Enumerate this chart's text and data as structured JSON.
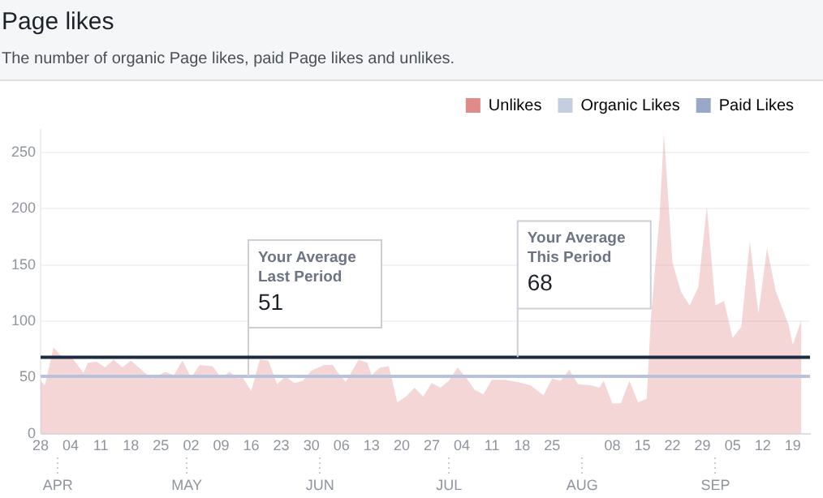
{
  "chart_data": {
    "type": "area",
    "title": "Page likes",
    "subtitle": "The number of organic Page likes, paid Page likes and unlikes.",
    "x": [
      "--03-28",
      "--03-29",
      "--03-31",
      "--04-02",
      "--04-04",
      "--04-07",
      "--04-08",
      "--04-10",
      "--04-12",
      "--04-14",
      "--04-16",
      "--04-18",
      "--04-21",
      "--04-23",
      "--04-26",
      "--04-28",
      "--04-30",
      "--05-02",
      "--05-04",
      "--05-07",
      "--05-09",
      "--05-11",
      "--05-13",
      "--05-14",
      "--05-16",
      "--05-18",
      "--05-20",
      "--05-22",
      "--05-24",
      "--05-26",
      "--05-28",
      "--05-30",
      "--06-02",
      "--06-04",
      "--06-05",
      "--06-07",
      "--06-10",
      "--06-12",
      "--06-13",
      "--06-15",
      "--06-17",
      "--06-19",
      "--06-21",
      "--06-23",
      "--06-25",
      "--06-27",
      "--06-29",
      "--07-01",
      "--07-03",
      "--07-05",
      "--07-07",
      "--07-09",
      "--07-11",
      "--07-14",
      "--07-17",
      "--07-20",
      "--07-23",
      "--07-25",
      "--07-27",
      "--07-29",
      "--07-31",
      "--08-03",
      "--08-05",
      "--08-06",
      "--08-08",
      "--08-10",
      "--08-12",
      "--08-14",
      "--08-16",
      "--08-17",
      "--08-19",
      "--08-20",
      "--08-22",
      "--08-24",
      "--08-26",
      "--08-28",
      "--08-30",
      "--09-01",
      "--09-03",
      "--09-05",
      "--09-07",
      "--09-09",
      "--09-11",
      "--09-13",
      "--09-15",
      "--09-18",
      "--09-19",
      "--09-21"
    ],
    "series": [
      {
        "name": "Unlikes",
        "color": "#e08a8a",
        "values": [
          47,
          43,
          77,
          68,
          69,
          54,
          63,
          64,
          59,
          66,
          59,
          65,
          55,
          49,
          55,
          52,
          65,
          50,
          61,
          60,
          50,
          55,
          49,
          50,
          38,
          66,
          65,
          44,
          51,
          45,
          47,
          56,
          61,
          61,
          55,
          46,
          66,
          63,
          52,
          59,
          60,
          28,
          33,
          41,
          33,
          45,
          41,
          47,
          59,
          50,
          39,
          35,
          48,
          48,
          46,
          43,
          34,
          49,
          47,
          57,
          44,
          43,
          41,
          47,
          27,
          27,
          47,
          28,
          31,
          104,
          193,
          267,
          152,
          126,
          114,
          130,
          202,
          114,
          118,
          85,
          95,
          171,
          107,
          165,
          127,
          97,
          79,
          101
        ]
      },
      {
        "name": "Organic Likes",
        "color": "#c5cde0",
        "values": [
          null,
          null,
          null,
          null,
          null,
          null,
          null,
          null,
          null,
          null,
          null,
          null,
          null,
          null,
          null,
          null,
          null,
          null,
          null,
          null,
          null,
          null,
          null,
          null,
          null,
          null,
          null,
          null,
          null,
          null,
          null,
          null,
          null,
          null,
          null,
          null,
          null,
          null,
          null,
          null,
          null,
          null,
          null,
          null,
          null,
          null,
          null,
          null,
          null,
          null,
          null,
          null,
          null,
          null,
          null,
          null,
          null,
          null,
          null,
          null,
          null,
          null,
          null,
          null,
          null,
          null,
          null,
          null,
          null,
          null,
          null,
          null,
          null,
          null,
          null,
          null,
          null,
          null,
          null,
          null,
          null,
          null,
          null,
          null,
          null,
          null,
          null,
          null
        ]
      },
      {
        "name": "Paid Likes",
        "color": "#9aa8c8",
        "values": [
          null,
          null,
          null,
          null,
          null,
          null,
          null,
          null,
          null,
          null,
          null,
          null,
          null,
          null,
          null,
          null,
          null,
          null,
          null,
          null,
          null,
          null,
          null,
          null,
          null,
          null,
          null,
          null,
          null,
          null,
          null,
          null,
          null,
          null,
          null,
          null,
          null,
          null,
          null,
          null,
          null,
          null,
          null,
          null,
          null,
          null,
          null,
          null,
          null,
          null,
          null,
          null,
          null,
          null,
          null,
          null,
          null,
          null,
          null,
          null,
          null,
          null,
          null,
          null,
          null,
          null,
          null,
          null,
          null,
          null,
          null,
          null,
          null,
          null,
          null,
          null,
          null,
          null,
          null,
          null,
          null,
          null,
          null,
          null,
          null,
          null,
          null,
          null
        ]
      }
    ],
    "xlim": [
      "--03-28",
      "--09-23"
    ],
    "xticks": [
      {
        "value": "--03-28",
        "label": "28"
      },
      {
        "value": "--04-04",
        "label": "04"
      },
      {
        "value": "--04-11",
        "label": "11"
      },
      {
        "value": "--04-18",
        "label": "18"
      },
      {
        "value": "--04-25",
        "label": "25"
      },
      {
        "value": "--05-02",
        "label": "02"
      },
      {
        "value": "--05-09",
        "label": "09"
      },
      {
        "value": "--05-16",
        "label": "16"
      },
      {
        "value": "--05-23",
        "label": "23"
      },
      {
        "value": "--05-30",
        "label": "30"
      },
      {
        "value": "--06-06",
        "label": "06"
      },
      {
        "value": "--06-13",
        "label": "13"
      },
      {
        "value": "--06-20",
        "label": "20"
      },
      {
        "value": "--06-27",
        "label": "27"
      },
      {
        "value": "--07-04",
        "label": "04"
      },
      {
        "value": "--07-11",
        "label": "11"
      },
      {
        "value": "--07-18",
        "label": "18"
      },
      {
        "value": "--07-25",
        "label": "25"
      },
      {
        "value": "--08-08",
        "label": "08"
      },
      {
        "value": "--08-15",
        "label": "15"
      },
      {
        "value": "--08-22",
        "label": "22"
      },
      {
        "value": "--08-29",
        "label": "29"
      },
      {
        "value": "--09-05",
        "label": "05"
      },
      {
        "value": "--09-12",
        "label": "12"
      },
      {
        "value": "--09-19",
        "label": "19"
      }
    ],
    "x2lim": [
      "--03-28",
      "--09-23"
    ],
    "x2ticks": [
      {
        "value": "--04-01",
        "label": "APR"
      },
      {
        "value": "--05-01",
        "label": "MAY"
      },
      {
        "value": "--06-01",
        "label": "JUN"
      },
      {
        "value": "--07-01",
        "label": "JUL"
      },
      {
        "value": "--08-01",
        "label": "AUG"
      },
      {
        "value": "--09-01",
        "label": "SEP"
      }
    ],
    "ylim": [
      0,
      270
    ],
    "yticks": [
      0,
      50,
      100,
      150,
      200,
      250
    ],
    "ref_lines": [
      {
        "axis": "y",
        "value": 51,
        "label": "Your Average Last Period\n51",
        "color": "#b8c2dc"
      },
      {
        "axis": "y",
        "value": 68,
        "label": "Your Average This Period\n68",
        "color": "#1d2a44"
      }
    ],
    "grid": "y",
    "legend": "top right",
    "marker": "none"
  }
}
